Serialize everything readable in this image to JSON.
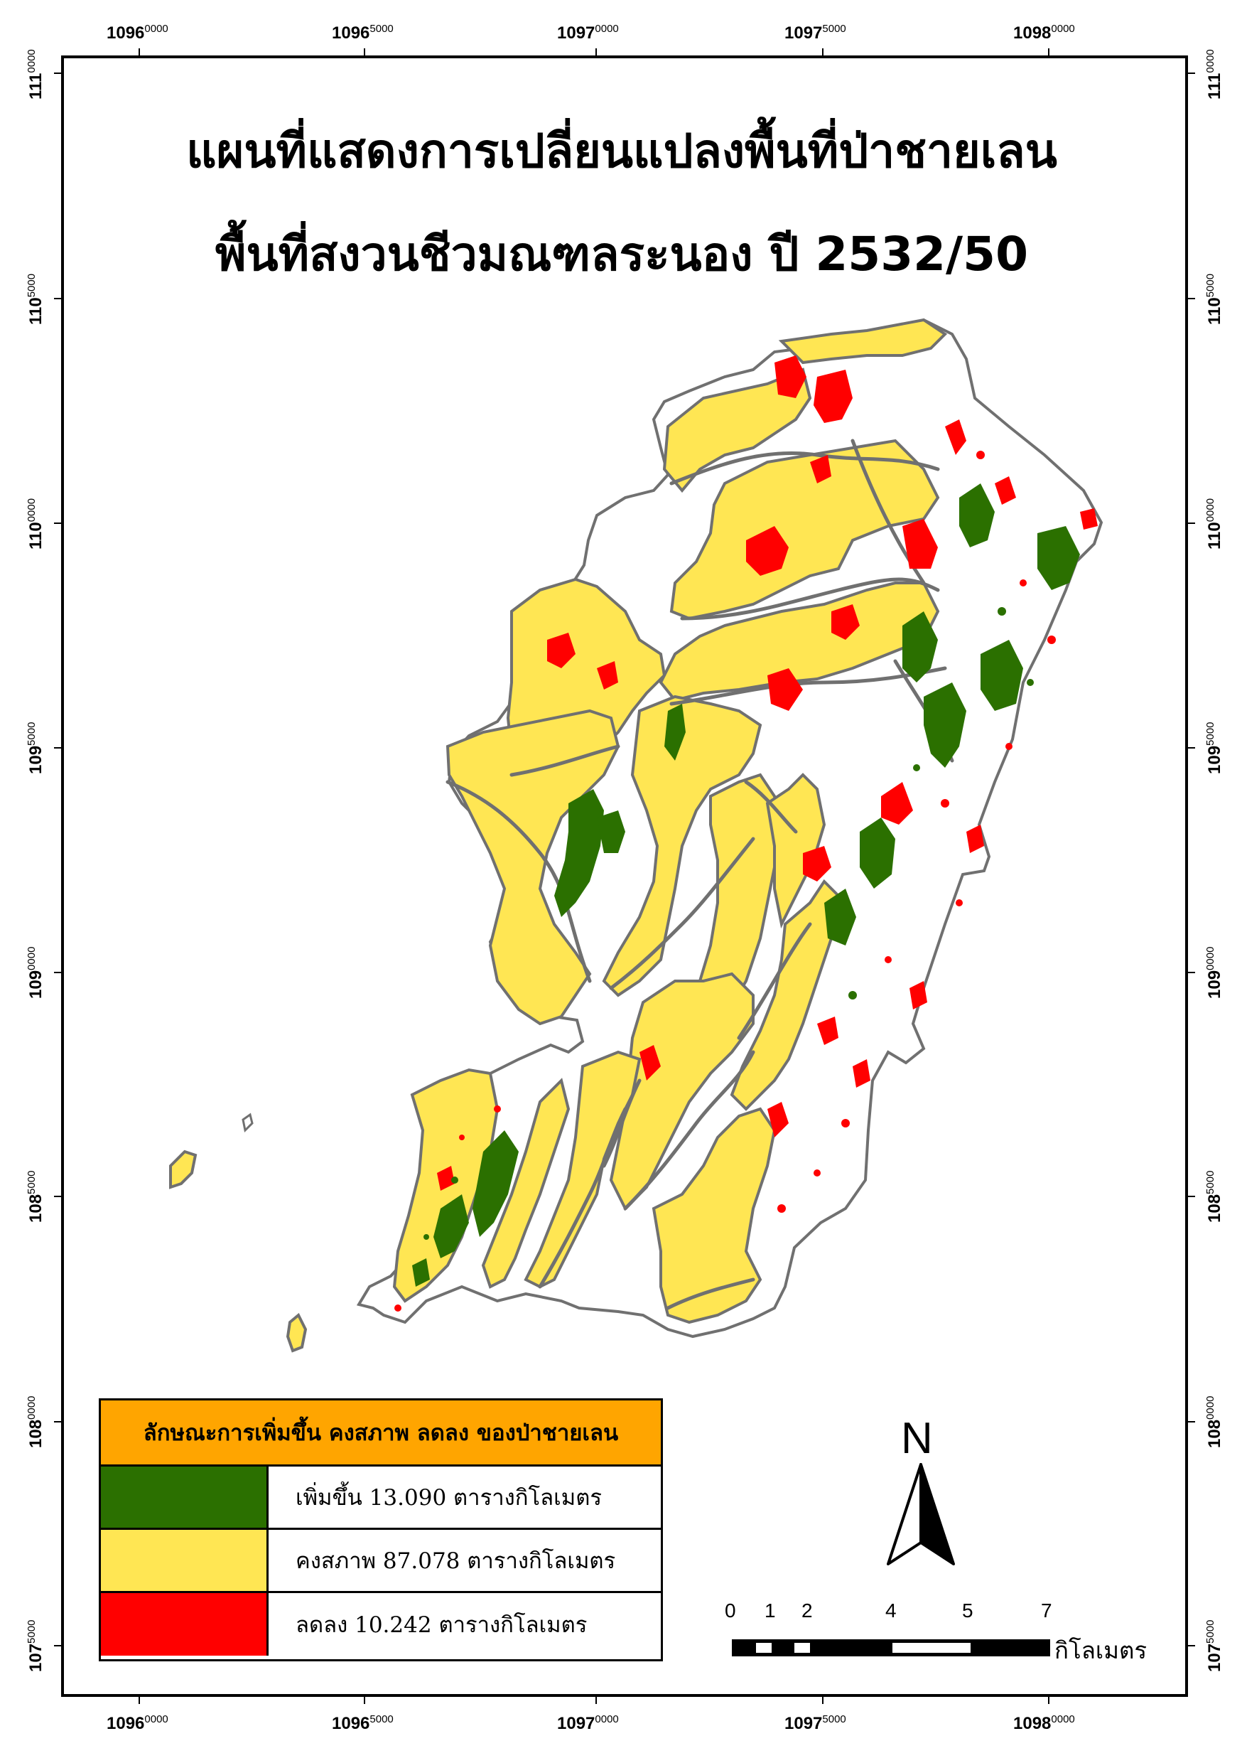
{
  "title": {
    "line1": "แผนที่แสดงการเปลี่ยนแปลงพื้นที่ป่าชายเลน",
    "line2": "พื้นที่สงวนชีวมณฑลระนอง ปี 2532/50"
  },
  "grid": {
    "x_labels": [
      {
        "major": "1096",
        "minor": "0000"
      },
      {
        "major": "1096",
        "minor": "5000"
      },
      {
        "major": "1097",
        "minor": "0000"
      },
      {
        "major": "1097",
        "minor": "5000"
      },
      {
        "major": "1098",
        "minor": "0000"
      }
    ],
    "y_labels": [
      {
        "major": "111",
        "minor": "0000"
      },
      {
        "major": "110",
        "minor": "5000"
      },
      {
        "major": "110",
        "minor": "0000"
      },
      {
        "major": "109",
        "minor": "5000"
      },
      {
        "major": "109",
        "minor": "0000"
      },
      {
        "major": "108",
        "minor": "5000"
      },
      {
        "major": "108",
        "minor": "0000"
      },
      {
        "major": "107",
        "minor": "5000"
      }
    ]
  },
  "legend": {
    "header": "ลักษณะการเพิ่มขึ้น คงสภาพ ลดลง ของป่าชายเลน",
    "items": [
      {
        "label": "เพิ่มขึ้น 13.090 ตารางกิโลเมตร",
        "color": "#2b7000"
      },
      {
        "label": "คงสภาพ 87.078 ตารางกิโลเมตร",
        "color": "#ffe653"
      },
      {
        "label": "ลดลง 10.242 ตารางกิโลเมตร",
        "color": "#ff0000"
      }
    ]
  },
  "north_arrow": {
    "letter": "N"
  },
  "scale_bar": {
    "ticks": [
      "0",
      "1",
      "2",
      "4",
      "5",
      "7"
    ],
    "unit": "กิโลเมตร"
  },
  "colors": {
    "increase": "#2b7000",
    "stable": "#ffe653",
    "decrease": "#ff0000",
    "channel": "#707070",
    "frame": "#000000"
  }
}
